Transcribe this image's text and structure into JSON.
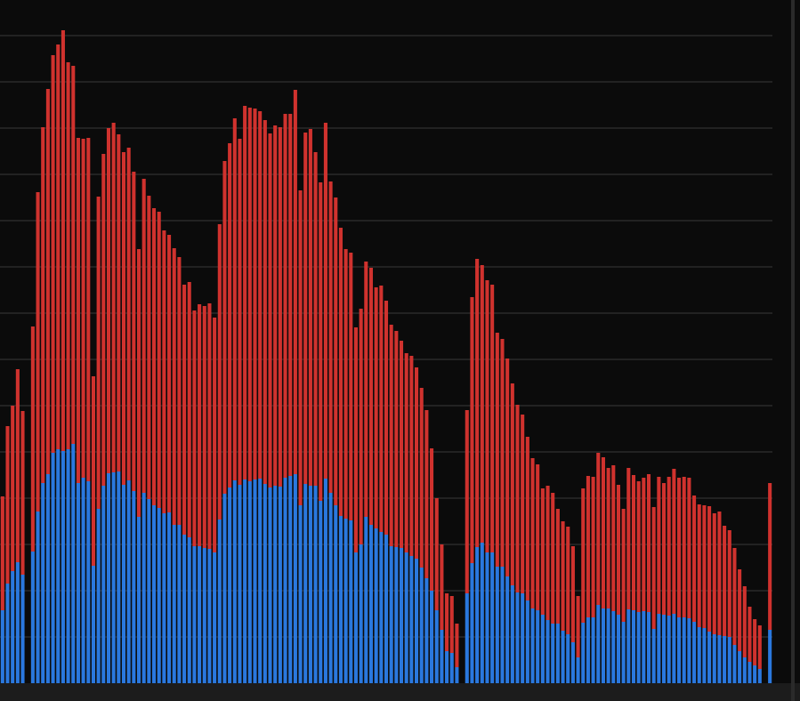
{
  "chart_data": {
    "type": "bar",
    "stacked": true,
    "grid": true,
    "ylim": [
      0,
      768
    ],
    "yticks": [
      52,
      104,
      156,
      208,
      260,
      312,
      364,
      416,
      468,
      520,
      572,
      624,
      676,
      728
    ],
    "series": [
      {
        "color": "#2a78de",
        "values": [
          82,
          112,
          126,
          136,
          122,
          null,
          148,
          193,
          225,
          235,
          259,
          263,
          261,
          263,
          269,
          225,
          231,
          227,
          132,
          196,
          222,
          236,
          237,
          238,
          223,
          228,
          216,
          187,
          214,
          207,
          200,
          197,
          191,
          192,
          178,
          178,
          167,
          164,
          154,
          154,
          152,
          151,
          147,
          184,
          213,
          220,
          228,
          223,
          229,
          227,
          229,
          230,
          224,
          220,
          222,
          221,
          231,
          233,
          235,
          200,
          224,
          222,
          222,
          205,
          230,
          214,
          200,
          188,
          185,
          183,
          147,
          156,
          187,
          178,
          174,
          170,
          167,
          154,
          153,
          152,
          147,
          143,
          140,
          130,
          118,
          104,
          82,
          60,
          36,
          34,
          18,
          null,
          101,
          135,
          153,
          158,
          147,
          147,
          131,
          131,
          120,
          110,
          102,
          101,
          93,
          84,
          82,
          77,
          71,
          67,
          67,
          59,
          55,
          46,
          29,
          68,
          74,
          74,
          88,
          84,
          84,
          81,
          77,
          69,
          83,
          82,
          80,
          81,
          80,
          61,
          78,
          77,
          76,
          78,
          74,
          74,
          73,
          69,
          63,
          62,
          58,
          55,
          54,
          53,
          52,
          43,
          36,
          29,
          24,
          20,
          16,
          null,
          60
        ]
      },
      {
        "color": "#d0322e",
        "values": [
          128,
          177,
          186,
          217,
          184,
          null,
          253,
          359,
          400,
          433,
          447,
          455,
          473,
          435,
          425,
          388,
          381,
          386,
          213,
          351,
          373,
          388,
          393,
          379,
          374,
          374,
          359,
          301,
          353,
          341,
          334,
          333,
          318,
          312,
          311,
          301,
          281,
          287,
          265,
          272,
          272,
          276,
          264,
          332,
          374,
          387,
          407,
          389,
          420,
          420,
          417,
          413,
          409,
          398,
          405,
          404,
          409,
          407,
          432,
          354,
          395,
          401,
          375,
          358,
          400,
          350,
          346,
          324,
          303,
          301,
          253,
          265,
          287,
          289,
          271,
          277,
          263,
          249,
          243,
          233,
          224,
          225,
          215,
          202,
          189,
          160,
          126,
          96,
          65,
          64,
          49,
          null,
          206,
          299,
          324,
          312,
          306,
          301,
          263,
          256,
          245,
          227,
          211,
          201,
          184,
          169,
          164,
          142,
          151,
          147,
          129,
          123,
          121,
          108,
          69,
          151,
          159,
          158,
          171,
          170,
          158,
          164,
          146,
          127,
          159,
          152,
          147,
          150,
          155,
          137,
          154,
          148,
          156,
          163,
          157,
          158,
          158,
          142,
          138,
          138,
          141,
          136,
          139,
          124,
          120,
          109,
          92,
          80,
          62,
          52,
          49,
          null,
          165
        ]
      }
    ]
  }
}
